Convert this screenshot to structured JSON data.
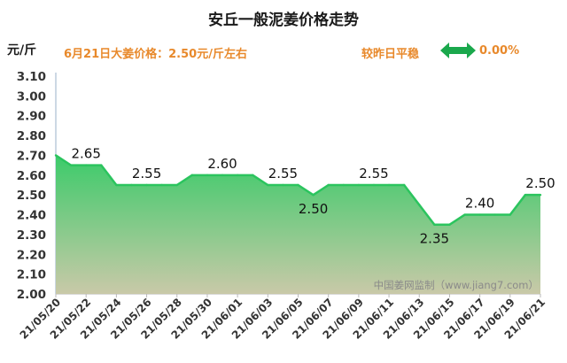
{
  "title": "安丘一般泥姜价格走势",
  "unit": "元/斤",
  "price_line": "6月21日大姜价格：2.50元/斤左右",
  "change_label": "较昨日平稳",
  "change_icon": "double-arrow-icon",
  "change_value": "0.00%",
  "watermark": "中国姜网监制（www.jiang7.com）",
  "colors": {
    "line": "#2bc45e",
    "fill_top": "#3ccb6a",
    "fill_bottom": "#c9c9a8",
    "accent": "#e8892b",
    "arrow": "#1aa84c"
  },
  "chart_data": {
    "type": "area",
    "x": [
      "21/05/20",
      "21/05/21",
      "21/05/22",
      "21/05/23",
      "21/05/24",
      "21/05/25",
      "21/05/26",
      "21/05/27",
      "21/05/28",
      "21/05/29",
      "21/05/30",
      "21/05/31",
      "21/06/01",
      "21/06/02",
      "21/06/03",
      "21/06/04",
      "21/06/05",
      "21/06/06",
      "21/06/07",
      "21/06/08",
      "21/06/09",
      "21/06/10",
      "21/06/11",
      "21/06/12",
      "21/06/13",
      "21/06/14",
      "21/06/15",
      "21/06/16",
      "21/06/17",
      "21/06/18",
      "21/06/19",
      "21/06/20",
      "21/06/21"
    ],
    "values": [
      2.7,
      2.65,
      2.65,
      2.65,
      2.55,
      2.55,
      2.55,
      2.55,
      2.55,
      2.6,
      2.6,
      2.6,
      2.6,
      2.6,
      2.55,
      2.55,
      2.55,
      2.5,
      2.55,
      2.55,
      2.55,
      2.55,
      2.55,
      2.55,
      2.45,
      2.35,
      2.35,
      2.4,
      2.4,
      2.4,
      2.4,
      2.5,
      2.5
    ],
    "ylim": [
      2.0,
      3.1
    ],
    "yticks": [
      "2.00",
      "2.10",
      "2.20",
      "2.30",
      "2.40",
      "2.50",
      "2.60",
      "2.70",
      "2.80",
      "2.90",
      "3.00",
      "3.10"
    ],
    "xtick_labels": [
      "21/05/20",
      "21/05/22",
      "21/05/24",
      "21/05/26",
      "21/05/28",
      "21/05/30",
      "21/06/01",
      "21/06/03",
      "21/06/05",
      "21/06/07",
      "21/06/09",
      "21/06/11",
      "21/06/13",
      "21/06/15",
      "21/06/17",
      "21/06/19",
      "21/06/21"
    ],
    "annotations": [
      {
        "index": 2,
        "text": "2.65",
        "pos": "above"
      },
      {
        "index": 6,
        "text": "2.55",
        "pos": "above"
      },
      {
        "index": 11,
        "text": "2.60",
        "pos": "above"
      },
      {
        "index": 15,
        "text": "2.55",
        "pos": "above"
      },
      {
        "index": 17,
        "text": "2.50",
        "pos": "below"
      },
      {
        "index": 21,
        "text": "2.55",
        "pos": "above"
      },
      {
        "index": 25,
        "text": "2.35",
        "pos": "below"
      },
      {
        "index": 28,
        "text": "2.40",
        "pos": "above"
      },
      {
        "index": 32,
        "text": "2.50",
        "pos": "above"
      }
    ],
    "grid": false,
    "legend": "none"
  }
}
